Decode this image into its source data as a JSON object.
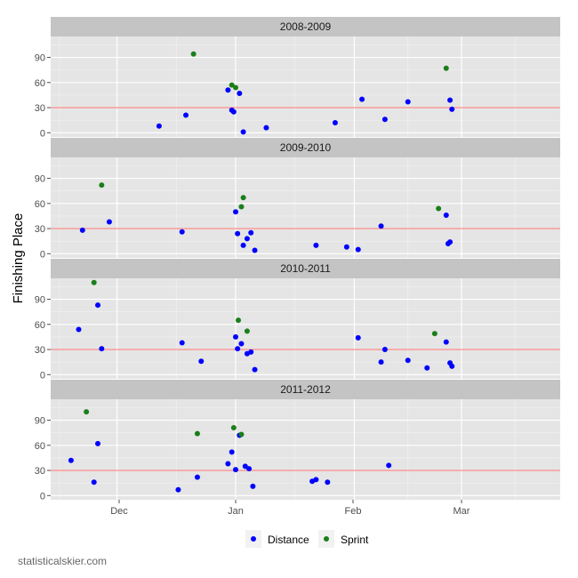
{
  "chart_data": {
    "type": "scatter",
    "ylabel": "Finishing Place",
    "x_ticks": [
      "Dec",
      "Jan",
      "Feb",
      "Mar"
    ],
    "y_ticks": [
      0,
      30,
      60,
      90
    ],
    "ylim": [
      -5,
      115
    ],
    "reference_line": 30,
    "legend_position": "bottom",
    "series_names": [
      "Distance",
      "Sprint"
    ],
    "colors": {
      "Distance": "#0000ff",
      "Sprint": "#1a7f1a",
      "reference": "#ff8080",
      "strip": "#c4c4c4",
      "panel": "#e5e5e5"
    },
    "panels": [
      {
        "label": "2008-2009",
        "distance": [
          [
            -20,
            8
          ],
          [
            -13,
            21
          ],
          [
            -2,
            51
          ],
          [
            -1,
            27
          ],
          [
            -0.5,
            25
          ],
          [
            1,
            47
          ],
          [
            2,
            1
          ],
          [
            8,
            6
          ],
          [
            26,
            12
          ],
          [
            33,
            40
          ],
          [
            39,
            16
          ],
          [
            45,
            37
          ],
          [
            56,
            39
          ],
          [
            56.5,
            28
          ]
        ],
        "sprint": [
          [
            -11,
            94
          ],
          [
            -1,
            57
          ],
          [
            0,
            54
          ],
          [
            55,
            77
          ]
        ]
      },
      {
        "label": "2009-2010",
        "distance": [
          [
            -40,
            28
          ],
          [
            -33,
            38
          ],
          [
            -14,
            26
          ],
          [
            0,
            50
          ],
          [
            0.5,
            24
          ],
          [
            2,
            10
          ],
          [
            3,
            18
          ],
          [
            4,
            25
          ],
          [
            5,
            4
          ],
          [
            21,
            10
          ],
          [
            29,
            8
          ],
          [
            32,
            5
          ],
          [
            38,
            33
          ],
          [
            55,
            46
          ],
          [
            55.5,
            12
          ],
          [
            56,
            14
          ]
        ],
        "sprint": [
          [
            -35,
            82
          ],
          [
            1.5,
            56
          ],
          [
            2,
            67
          ],
          [
            53,
            54
          ]
        ]
      },
      {
        "label": "2010-2011",
        "distance": [
          [
            -41,
            54
          ],
          [
            -36,
            83
          ],
          [
            -35,
            31
          ],
          [
            -14,
            38
          ],
          [
            -9,
            16
          ],
          [
            0,
            45
          ],
          [
            0.5,
            31
          ],
          [
            1.5,
            37
          ],
          [
            3,
            25
          ],
          [
            4,
            27
          ],
          [
            5,
            6
          ],
          [
            32,
            44
          ],
          [
            38,
            15
          ],
          [
            39,
            30
          ],
          [
            45,
            17
          ],
          [
            50,
            8
          ],
          [
            55,
            39
          ],
          [
            56,
            14
          ],
          [
            56.5,
            10
          ]
        ],
        "sprint": [
          [
            -37,
            110
          ],
          [
            0.7,
            65
          ],
          [
            3,
            52
          ],
          [
            52,
            49
          ]
        ]
      },
      {
        "label": "2011-2012",
        "distance": [
          [
            -43,
            42
          ],
          [
            -37,
            16
          ],
          [
            -36,
            62
          ],
          [
            -15,
            7
          ],
          [
            -10,
            22
          ],
          [
            -2,
            38
          ],
          [
            -1,
            52
          ],
          [
            0,
            31
          ],
          [
            1,
            72
          ],
          [
            2.5,
            35
          ],
          [
            3.5,
            32
          ],
          [
            4.5,
            11
          ],
          [
            20,
            17
          ],
          [
            21,
            19
          ],
          [
            24,
            16
          ],
          [
            40,
            36
          ]
        ],
        "sprint": [
          [
            -39,
            100
          ],
          [
            -10,
            74
          ],
          [
            -0.5,
            81
          ],
          [
            1.5,
            73
          ]
        ]
      }
    ]
  },
  "credit": "statisticalskier.com"
}
